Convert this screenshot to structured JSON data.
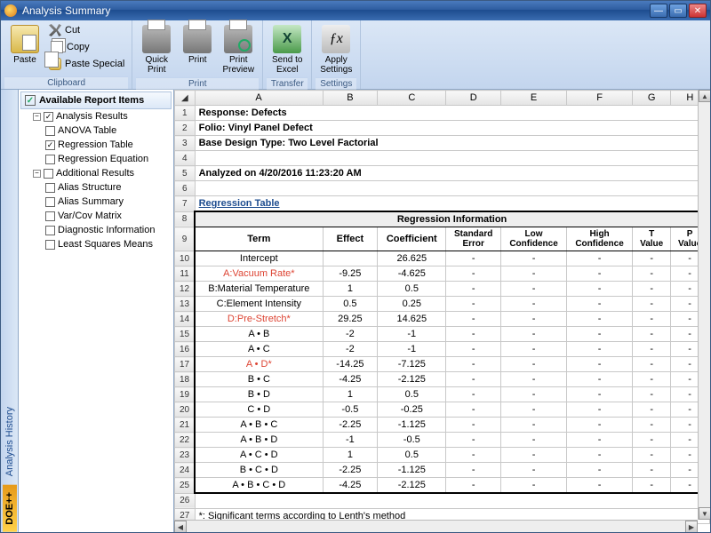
{
  "window": {
    "title": "Analysis Summary"
  },
  "ribbon": {
    "paste": "Paste",
    "cut": "Cut",
    "copy": "Copy",
    "paste_special": "Paste Special",
    "clipboard_group": "Clipboard",
    "quick_print": "Quick Print",
    "print": "Print",
    "print_preview": "Print Preview",
    "print_group": "Print",
    "send_excel": "Send to Excel",
    "transfer_group": "Transfer",
    "apply_settings": "Apply Settings",
    "settings_group": "Settings"
  },
  "vtab": {
    "history": "Analysis History",
    "logo": "DOE++"
  },
  "tree": {
    "header": "Available Report Items",
    "g1": "Analysis Results",
    "i1": "ANOVA Table",
    "i2": "Regression Table",
    "i3": "Regression Equation",
    "g2": "Additional Results",
    "i4": "Alias Structure",
    "i5": "Alias Summary",
    "i6": "Var/Cov Matrix",
    "i7": "Diagnostic Information",
    "i8": "Least Squares Means"
  },
  "cols": {
    "A": "A",
    "B": "B",
    "C": "C",
    "D": "D",
    "E": "E",
    "F": "F",
    "G": "G",
    "H": "H"
  },
  "rows": {
    "r1": "Response: Defects",
    "r2": "Folio: Vinyl Panel Defect",
    "r3": "Base Design Type: Two Level Factorial",
    "r5": "Analyzed on 4/20/2016 11:23:20 AM",
    "r7": "Regression Table",
    "r8": "Regression Information",
    "h_term": "Term",
    "h_effect": "Effect",
    "h_coef": "Coefficient",
    "h_se": "Standard Error",
    "h_low": "Low Confidence",
    "h_high": "High Confidence",
    "h_t": "T Value",
    "h_p": "P Value",
    "r27": "*: Significant terms according to Lenth's method"
  },
  "reg": [
    {
      "n": 10,
      "term": "Intercept",
      "eff": "",
      "coef": "26.625",
      "red": false
    },
    {
      "n": 11,
      "term": "A:Vacuum Rate*",
      "eff": "-9.25",
      "coef": "-4.625",
      "red": true
    },
    {
      "n": 12,
      "term": "B:Material Temperature",
      "eff": "1",
      "coef": "0.5",
      "red": false
    },
    {
      "n": 13,
      "term": "C:Element Intensity",
      "eff": "0.5",
      "coef": "0.25",
      "red": false
    },
    {
      "n": 14,
      "term": "D:Pre-Stretch*",
      "eff": "29.25",
      "coef": "14.625",
      "red": true
    },
    {
      "n": 15,
      "term": "A • B",
      "eff": "-2",
      "coef": "-1",
      "red": false
    },
    {
      "n": 16,
      "term": "A • C",
      "eff": "-2",
      "coef": "-1",
      "red": false
    },
    {
      "n": 17,
      "term": "A • D*",
      "eff": "-14.25",
      "coef": "-7.125",
      "red": true
    },
    {
      "n": 18,
      "term": "B • C",
      "eff": "-4.25",
      "coef": "-2.125",
      "red": false
    },
    {
      "n": 19,
      "term": "B • D",
      "eff": "1",
      "coef": "0.5",
      "red": false
    },
    {
      "n": 20,
      "term": "C • D",
      "eff": "-0.5",
      "coef": "-0.25",
      "red": false
    },
    {
      "n": 21,
      "term": "A • B • C",
      "eff": "-2.25",
      "coef": "-1.125",
      "red": false
    },
    {
      "n": 22,
      "term": "A • B • D",
      "eff": "-1",
      "coef": "-0.5",
      "red": false
    },
    {
      "n": 23,
      "term": "A • C • D",
      "eff": "1",
      "coef": "0.5",
      "red": false
    },
    {
      "n": 24,
      "term": "B • C • D",
      "eff": "-2.25",
      "coef": "-1.125",
      "red": false
    },
    {
      "n": 25,
      "term": "A • B • C • D",
      "eff": "-4.25",
      "coef": "-2.125",
      "red": false
    }
  ],
  "colors": {
    "chartScheme": "none"
  }
}
